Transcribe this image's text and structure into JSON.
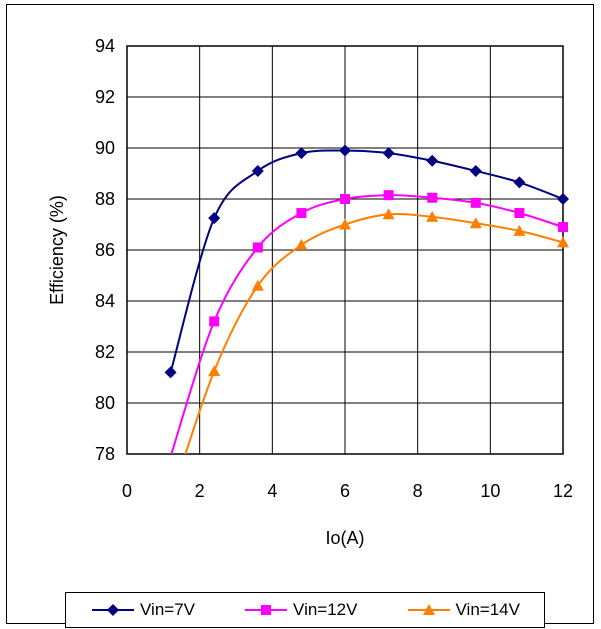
{
  "chart_data": {
    "type": "line",
    "title": "",
    "xlabel": "Io(A)",
    "ylabel": "Efficiency (%)",
    "xlim": [
      0,
      12
    ],
    "ylim": [
      78,
      94
    ],
    "xticks": [
      "0",
      "2",
      "4",
      "6",
      "8",
      "10",
      "12"
    ],
    "yticks": [
      "78",
      "80",
      "82",
      "84",
      "86",
      "88",
      "90",
      "92",
      "94"
    ],
    "grid": true,
    "legend_position": "bottom",
    "series": [
      {
        "name": "Vin=7V",
        "color": "#000080",
        "marker": "diamond",
        "x": [
          1.2,
          2.4,
          3.6,
          4.8,
          6.0,
          7.2,
          8.4,
          9.6,
          10.8,
          12.0
        ],
        "y": [
          81.2,
          87.25,
          89.1,
          89.8,
          89.9,
          89.8,
          89.5,
          89.1,
          88.65,
          88.0
        ]
      },
      {
        "name": "Vin=12V",
        "color": "#FF00FF",
        "marker": "square",
        "x": [
          1.2,
          2.4,
          3.6,
          4.8,
          6.0,
          7.2,
          8.4,
          9.6,
          10.8,
          12.0
        ],
        "y": [
          77.9,
          83.2,
          86.1,
          87.45,
          88.0,
          88.15,
          88.05,
          87.85,
          87.45,
          86.9
        ]
      },
      {
        "name": "Vin=14V",
        "color": "#FF8000",
        "marker": "triangle",
        "x": [
          1.2,
          2.4,
          3.6,
          4.8,
          6.0,
          7.2,
          8.4,
          9.6,
          10.8,
          12.0
        ],
        "y": [
          76.2,
          81.25,
          84.6,
          86.2,
          87.0,
          87.4,
          87.3,
          87.05,
          86.75,
          86.3
        ]
      }
    ]
  }
}
